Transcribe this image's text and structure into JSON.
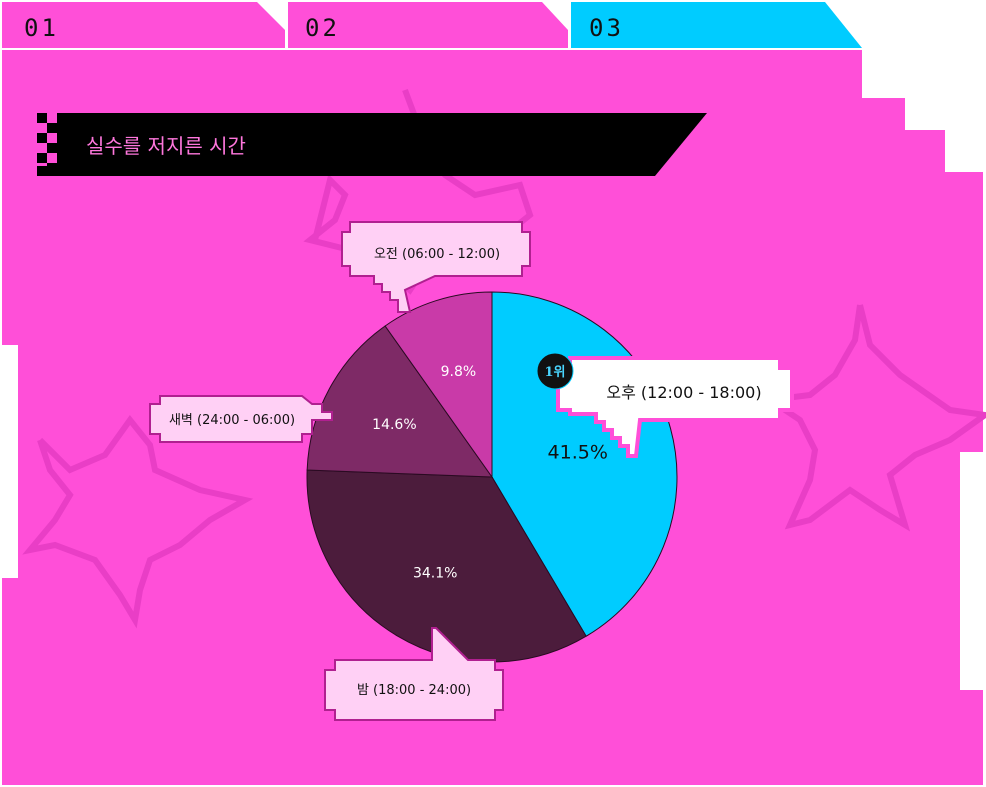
{
  "tabs": [
    {
      "label": "01",
      "active": false
    },
    {
      "label": "02",
      "active": false
    },
    {
      "label": "03",
      "active": true
    }
  ],
  "section": {
    "title": "실수를 저지른 시간"
  },
  "colors": {
    "background": "#ff4fd8",
    "tab_inactive": "#ff4fd8",
    "tab_active": "#00ccff",
    "title_bar": "#000000",
    "title_text": "#ff77dd",
    "callout_fill": "#ffd0f5",
    "callout_border": "#ff4fd8"
  },
  "chart_data": {
    "type": "pie",
    "title": "",
    "slices": [
      {
        "label": "오후 (12:00 - 18:00)",
        "value": 41.5,
        "display": "41.5%",
        "color": "#00ccff",
        "rank": "1위"
      },
      {
        "label": "밤 (18:00 - 24:00)",
        "value": 34.1,
        "display": "34.1%",
        "color": "#4c1c3c"
      },
      {
        "label": "새벽 (24:00 - 06:00)",
        "value": 14.6,
        "display": "14.6%",
        "color": "#7e2a66"
      },
      {
        "label": "오전 (06:00 - 12:00)",
        "value": 9.8,
        "display": "9.8%",
        "color": "#c93aa8"
      }
    ]
  }
}
